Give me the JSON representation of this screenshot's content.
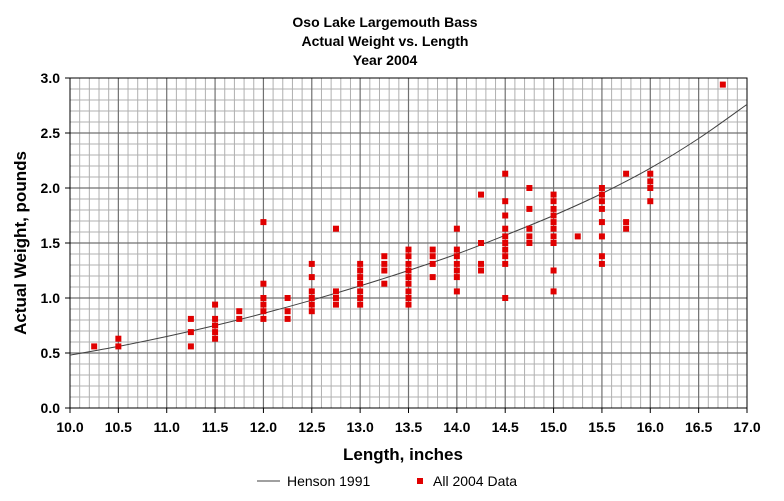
{
  "chart_data": {
    "type": "scatter",
    "title_lines": [
      "Oso Lake Largemouth Bass",
      "Actual Weight vs. Length",
      "Year 2004"
    ],
    "xlabel": "Length, inches",
    "ylabel": "Actual Weight, pounds",
    "xlim": [
      10.0,
      17.0
    ],
    "ylim": [
      0.0,
      3.0
    ],
    "x_ticks": [
      "10.0",
      "10.5",
      "11.0",
      "11.5",
      "12.0",
      "12.5",
      "13.0",
      "13.5",
      "14.0",
      "14.5",
      "15.0",
      "15.5",
      "16.0",
      "16.5",
      "17.0"
    ],
    "y_ticks": [
      "0.0",
      "0.5",
      "1.0",
      "1.5",
      "2.0",
      "2.5",
      "3.0"
    ],
    "grid": true,
    "legend_position": "bottom",
    "series": [
      {
        "name": "Henson 1991",
        "kind": "line",
        "color": "#404040",
        "x": [
          10.0,
          10.5,
          11.0,
          11.5,
          12.0,
          12.5,
          13.0,
          13.5,
          14.0,
          14.5,
          15.0,
          15.5,
          16.0,
          16.5,
          17.0
        ],
        "y": [
          0.48,
          0.56,
          0.65,
          0.75,
          0.86,
          0.98,
          1.11,
          1.25,
          1.4,
          1.57,
          1.75,
          1.95,
          2.18,
          2.45,
          2.76
        ]
      },
      {
        "name": "All 2004 Data",
        "kind": "scatter",
        "color": "#e00000",
        "points": [
          [
            10.25,
            0.56
          ],
          [
            10.5,
            0.63
          ],
          [
            10.5,
            0.56
          ],
          [
            11.25,
            0.81
          ],
          [
            11.25,
            0.69
          ],
          [
            11.25,
            0.56
          ],
          [
            11.5,
            0.94
          ],
          [
            11.5,
            0.81
          ],
          [
            11.5,
            0.75
          ],
          [
            11.5,
            0.75
          ],
          [
            11.5,
            0.69
          ],
          [
            11.5,
            0.63
          ],
          [
            11.75,
            0.88
          ],
          [
            11.75,
            0.81
          ],
          [
            12.0,
            1.69
          ],
          [
            12.0,
            1.13
          ],
          [
            12.0,
            1.0
          ],
          [
            12.0,
            0.94
          ],
          [
            12.0,
            0.88
          ],
          [
            12.0,
            0.81
          ],
          [
            12.25,
            1.0
          ],
          [
            12.25,
            0.88
          ],
          [
            12.25,
            0.81
          ],
          [
            12.5,
            1.31
          ],
          [
            12.5,
            1.19
          ],
          [
            12.5,
            1.06
          ],
          [
            12.5,
            1.0
          ],
          [
            12.5,
            0.94
          ],
          [
            12.5,
            0.88
          ],
          [
            12.75,
            1.63
          ],
          [
            12.75,
            1.06
          ],
          [
            12.75,
            1.0
          ],
          [
            12.75,
            0.94
          ],
          [
            13.0,
            1.31
          ],
          [
            13.0,
            1.25
          ],
          [
            13.0,
            1.19
          ],
          [
            13.0,
            1.13
          ],
          [
            13.0,
            1.06
          ],
          [
            13.0,
            1.0
          ],
          [
            13.0,
            0.94
          ],
          [
            13.25,
            1.38
          ],
          [
            13.25,
            1.31
          ],
          [
            13.25,
            1.25
          ],
          [
            13.25,
            1.13
          ],
          [
            13.5,
            1.44
          ],
          [
            13.5,
            1.38
          ],
          [
            13.5,
            1.31
          ],
          [
            13.5,
            1.25
          ],
          [
            13.5,
            1.19
          ],
          [
            13.5,
            1.13
          ],
          [
            13.5,
            1.06
          ],
          [
            13.5,
            1.0
          ],
          [
            13.5,
            0.94
          ],
          [
            13.75,
            1.44
          ],
          [
            13.75,
            1.38
          ],
          [
            13.75,
            1.31
          ],
          [
            13.75,
            1.19
          ],
          [
            14.0,
            1.63
          ],
          [
            14.0,
            1.44
          ],
          [
            14.0,
            1.38
          ],
          [
            14.0,
            1.31
          ],
          [
            14.0,
            1.25
          ],
          [
            14.0,
            1.19
          ],
          [
            14.0,
            1.06
          ],
          [
            14.25,
            1.94
          ],
          [
            14.25,
            1.5
          ],
          [
            14.25,
            1.31
          ],
          [
            14.25,
            1.25
          ],
          [
            14.5,
            2.13
          ],
          [
            14.5,
            1.88
          ],
          [
            14.5,
            1.75
          ],
          [
            14.5,
            1.63
          ],
          [
            14.5,
            1.56
          ],
          [
            14.5,
            1.5
          ],
          [
            14.5,
            1.44
          ],
          [
            14.5,
            1.38
          ],
          [
            14.5,
            1.31
          ],
          [
            14.5,
            1.0
          ],
          [
            14.75,
            2.0
          ],
          [
            14.75,
            1.81
          ],
          [
            14.75,
            1.63
          ],
          [
            14.75,
            1.56
          ],
          [
            14.75,
            1.5
          ],
          [
            15.0,
            1.94
          ],
          [
            15.0,
            1.88
          ],
          [
            15.0,
            1.81
          ],
          [
            15.0,
            1.75
          ],
          [
            15.0,
            1.69
          ],
          [
            15.0,
            1.63
          ],
          [
            15.0,
            1.56
          ],
          [
            15.0,
            1.5
          ],
          [
            15.0,
            1.25
          ],
          [
            15.0,
            1.06
          ],
          [
            15.25,
            1.56
          ],
          [
            15.5,
            2.0
          ],
          [
            15.5,
            1.94
          ],
          [
            15.5,
            1.88
          ],
          [
            15.5,
            1.81
          ],
          [
            15.5,
            1.69
          ],
          [
            15.5,
            1.56
          ],
          [
            15.5,
            1.38
          ],
          [
            15.5,
            1.31
          ],
          [
            15.75,
            2.13
          ],
          [
            15.75,
            1.69
          ],
          [
            15.75,
            1.63
          ],
          [
            16.0,
            2.13
          ],
          [
            16.0,
            2.06
          ],
          [
            16.0,
            2.0
          ],
          [
            16.0,
            1.88
          ],
          [
            16.75,
            2.94
          ]
        ]
      }
    ]
  }
}
